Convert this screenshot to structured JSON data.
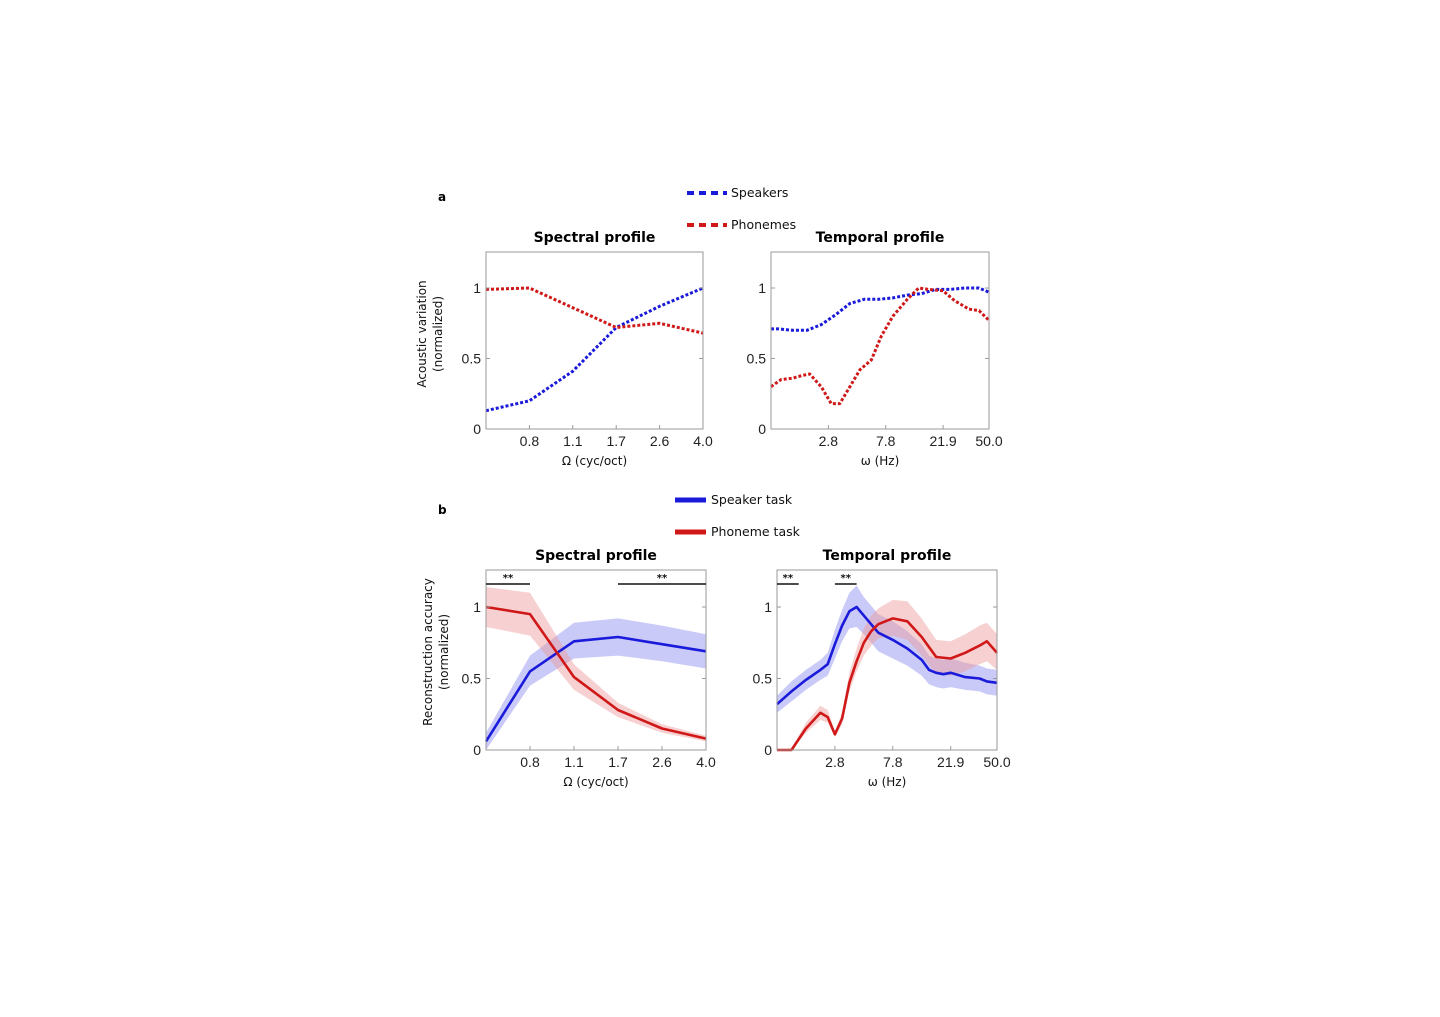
{
  "colors": {
    "blue": "#1a1adb",
    "red": "#d01818",
    "blue_band": "#8a8af0",
    "red_band": "#ee9a9a"
  },
  "panel_a": {
    "letter": "a",
    "ylabel_line1": "Acoustic variation",
    "ylabel_line2": "(normalized)",
    "legend": [
      {
        "name": "Speakers",
        "style": "dotted",
        "color": "#1a1adb"
      },
      {
        "name": "Phonemes",
        "style": "dotted",
        "color": "#d01818"
      }
    ]
  },
  "panel_b": {
    "letter": "b",
    "ylabel_line1": "Reconstruction accuracy",
    "ylabel_line2": "(normalized)",
    "legend": [
      {
        "name": "Speaker task",
        "style": "solid",
        "color": "#1a1adb"
      },
      {
        "name": "Phoneme task",
        "style": "solid",
        "color": "#d01818"
      }
    ]
  },
  "chart_data": [
    {
      "id": "a-spectral",
      "type": "line",
      "title": "Spectral profile",
      "xlabel": "Ω (cyc/oct)",
      "ylabel": "Acoustic variation (normalized)",
      "x_ticks": [
        "0.8",
        "1.1",
        "1.7",
        "2.6",
        "4.0"
      ],
      "x_tick_positions": [
        1,
        2,
        3,
        4,
        5
      ],
      "xlim": [
        0,
        5
      ],
      "y_ticks": [
        "0",
        "0.5",
        "1"
      ],
      "y_tick_values": [
        0,
        0.5,
        1
      ],
      "ylim": [
        0,
        1.25
      ],
      "series": [
        {
          "name": "Speakers",
          "style": "dotted",
          "x": [
            0,
            1,
            2,
            3,
            4,
            5
          ],
          "values": [
            0.13,
            0.2,
            0.41,
            0.72,
            0.87,
            1.0
          ]
        },
        {
          "name": "Phonemes",
          "style": "dotted",
          "x": [
            0,
            1,
            2,
            3,
            4,
            5
          ],
          "values": [
            0.99,
            1.0,
            0.86,
            0.72,
            0.75,
            0.68
          ]
        }
      ]
    },
    {
      "id": "a-temporal",
      "type": "line",
      "title": "Temporal profile",
      "xlabel": "ω (Hz)",
      "ylabel": "",
      "x_ticks": [
        "2.8",
        "7.8",
        "21.9",
        "50.0"
      ],
      "x_tick_positions": [
        4,
        8,
        12,
        15.2
      ],
      "xlim": [
        0,
        15.2
      ],
      "y_ticks": [
        "0",
        "0.5",
        "1"
      ],
      "y_tick_values": [
        0,
        0.5,
        1
      ],
      "ylim": [
        0,
        1.25
      ],
      "series": [
        {
          "name": "Speakers",
          "style": "dotted",
          "x": [
            0,
            0.5,
            1.5,
            2.5,
            3.5,
            4.5,
            5.5,
            6.5,
            7.5,
            8.5,
            9.5,
            10.5,
            11.5,
            12.5,
            13.5,
            14.5,
            15.2
          ],
          "values": [
            0.71,
            0.71,
            0.7,
            0.7,
            0.74,
            0.81,
            0.89,
            0.92,
            0.92,
            0.93,
            0.95,
            0.96,
            0.99,
            0.99,
            1.0,
            1.0,
            0.97
          ]
        },
        {
          "name": "Phonemes",
          "style": "dotted",
          "x": [
            0,
            0.7,
            1.5,
            2.2,
            2.7,
            3.5,
            4.2,
            4.8,
            5.5,
            6.2,
            7.0,
            7.7,
            8.5,
            9.5,
            10.3,
            11.0,
            12.0,
            12.8,
            13.8,
            14.5,
            15.2
          ],
          "values": [
            0.3,
            0.35,
            0.36,
            0.38,
            0.39,
            0.3,
            0.18,
            0.18,
            0.3,
            0.42,
            0.49,
            0.66,
            0.8,
            0.92,
            1.0,
            0.99,
            0.98,
            0.91,
            0.85,
            0.84,
            0.77
          ]
        }
      ]
    },
    {
      "id": "b-spectral",
      "type": "line",
      "title": "Spectral profile",
      "xlabel": "Ω (cyc/oct)",
      "ylabel": "Reconstruction accuracy (normalized)",
      "x_ticks": [
        "0.8",
        "1.1",
        "1.7",
        "2.6",
        "4.0"
      ],
      "x_tick_positions": [
        1,
        2,
        3,
        4,
        5
      ],
      "xlim": [
        0,
        5
      ],
      "y_ticks": [
        "0",
        "0.5",
        "1"
      ],
      "y_tick_values": [
        0,
        0.5,
        1
      ],
      "ylim": [
        0,
        1.25
      ],
      "significance": [
        {
          "label": "**",
          "x_range": [
            0,
            1
          ]
        },
        {
          "label": "**",
          "x_range": [
            3,
            5
          ]
        }
      ],
      "series": [
        {
          "name": "Speaker task",
          "style": "solid",
          "x": [
            0,
            1,
            2,
            3,
            4,
            5
          ],
          "values": [
            0.06,
            0.55,
            0.76,
            0.79,
            0.74,
            0.69
          ],
          "lower": [
            0.0,
            0.45,
            0.64,
            0.66,
            0.62,
            0.57
          ],
          "upper": [
            0.12,
            0.66,
            0.89,
            0.92,
            0.87,
            0.81
          ]
        },
        {
          "name": "Phoneme task",
          "style": "solid",
          "x": [
            0,
            1,
            2,
            3,
            4,
            5
          ],
          "values": [
            1.0,
            0.95,
            0.51,
            0.28,
            0.15,
            0.08
          ],
          "lower": [
            0.86,
            0.8,
            0.42,
            0.23,
            0.12,
            0.06
          ],
          "upper": [
            1.14,
            1.1,
            0.6,
            0.33,
            0.18,
            0.1
          ]
        }
      ]
    },
    {
      "id": "b-temporal",
      "type": "line",
      "title": "Temporal profile",
      "xlabel": "ω (Hz)",
      "ylabel": "",
      "x_ticks": [
        "2.8",
        "7.8",
        "21.9",
        "50.0"
      ],
      "x_tick_positions": [
        4,
        8,
        12,
        15.2
      ],
      "xlim": [
        0,
        15.2
      ],
      "y_ticks": [
        "0",
        "0.5",
        "1"
      ],
      "y_tick_values": [
        0,
        0.5,
        1
      ],
      "ylim": [
        0,
        1.25
      ],
      "significance": [
        {
          "label": "**",
          "x_range": [
            0,
            1.5
          ]
        },
        {
          "label": "**",
          "x_range": [
            4,
            5.5
          ]
        }
      ],
      "series": [
        {
          "name": "Speaker task",
          "style": "solid",
          "x": [
            0,
            1,
            2,
            3,
            3.5,
            4,
            4.5,
            5,
            5.5,
            6,
            7,
            8,
            9,
            10,
            10.5,
            11,
            11.5,
            12,
            13,
            14,
            14.5,
            15.2
          ],
          "values": [
            0.32,
            0.41,
            0.49,
            0.56,
            0.6,
            0.74,
            0.87,
            0.97,
            1.0,
            0.94,
            0.82,
            0.77,
            0.71,
            0.63,
            0.56,
            0.54,
            0.53,
            0.54,
            0.51,
            0.5,
            0.48,
            0.47
          ],
          "lower": [
            0.26,
            0.34,
            0.42,
            0.49,
            0.52,
            0.64,
            0.76,
            0.85,
            0.86,
            0.81,
            0.69,
            0.64,
            0.59,
            0.52,
            0.46,
            0.44,
            0.43,
            0.44,
            0.42,
            0.41,
            0.39,
            0.38
          ],
          "upper": [
            0.38,
            0.48,
            0.56,
            0.63,
            0.68,
            0.84,
            0.98,
            1.1,
            1.15,
            1.07,
            0.95,
            0.9,
            0.83,
            0.74,
            0.66,
            0.64,
            0.63,
            0.64,
            0.61,
            0.59,
            0.57,
            0.56
          ]
        },
        {
          "name": "Phoneme task",
          "style": "solid",
          "x": [
            0,
            1,
            2,
            3,
            3.5,
            4,
            4.5,
            5,
            5.5,
            6,
            6.5,
            7,
            8,
            9,
            10,
            11,
            12,
            13,
            14,
            14.5,
            15.2
          ],
          "values": [
            0.0,
            0.0,
            0.15,
            0.26,
            0.23,
            0.11,
            0.22,
            0.47,
            0.62,
            0.75,
            0.83,
            0.88,
            0.92,
            0.9,
            0.79,
            0.65,
            0.64,
            0.68,
            0.73,
            0.76,
            0.68
          ],
          "lower": [
            0.0,
            0.0,
            0.12,
            0.21,
            0.19,
            0.09,
            0.18,
            0.41,
            0.55,
            0.66,
            0.73,
            0.78,
            0.8,
            0.77,
            0.66,
            0.53,
            0.52,
            0.55,
            0.6,
            0.62,
            0.56
          ],
          "upper": [
            0.0,
            0.01,
            0.19,
            0.31,
            0.28,
            0.13,
            0.26,
            0.54,
            0.71,
            0.85,
            0.94,
            0.99,
            1.05,
            1.04,
            0.92,
            0.77,
            0.76,
            0.81,
            0.87,
            0.89,
            0.81
          ]
        }
      ]
    }
  ]
}
